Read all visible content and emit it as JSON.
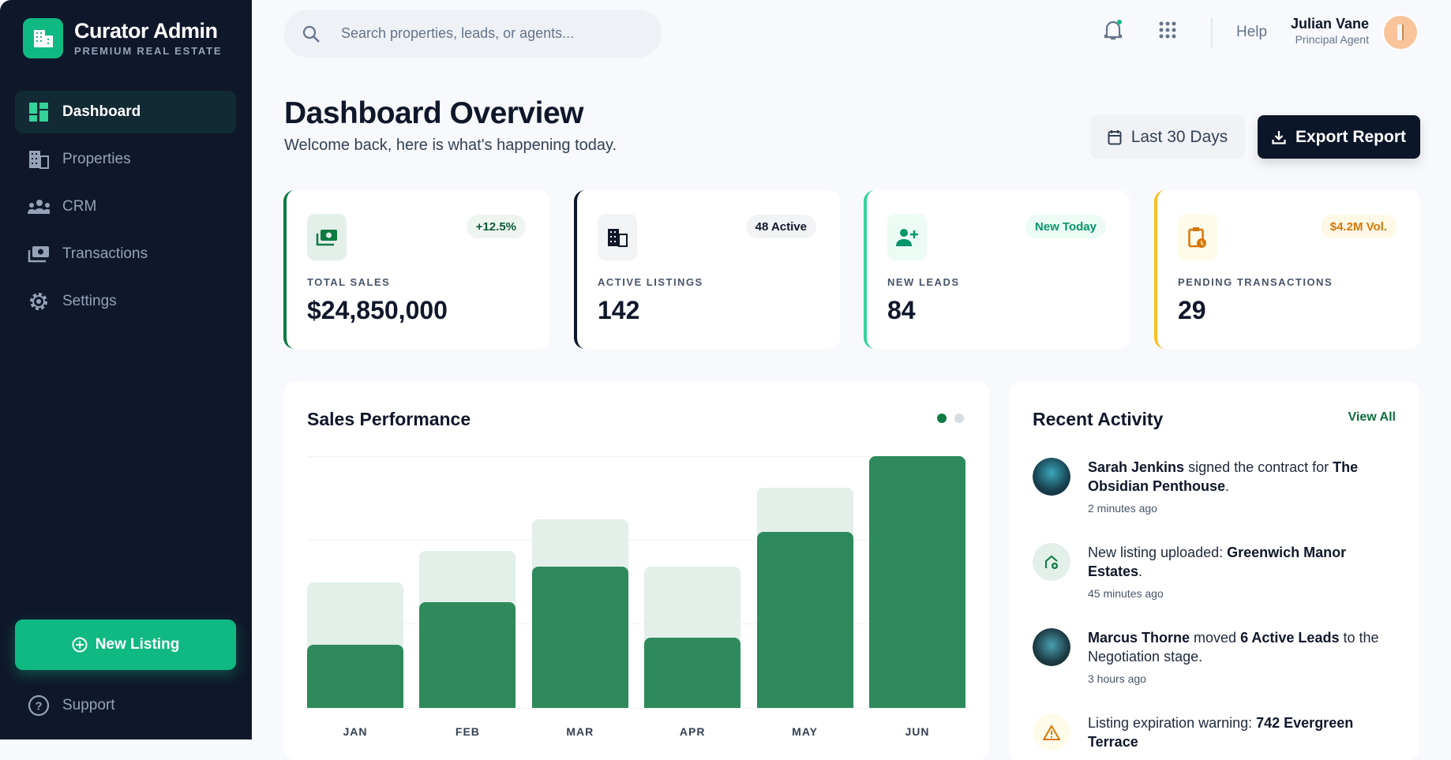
{
  "sidebar": {
    "brand": "Curator Admin",
    "brand_sub": "PREMIUM REAL ESTATE",
    "items": [
      {
        "label": "Dashboard",
        "icon": "dashboard-icon",
        "active": true
      },
      {
        "label": "Properties",
        "icon": "building-icon"
      },
      {
        "label": "CRM",
        "icon": "people-icon"
      },
      {
        "label": "Transactions",
        "icon": "payments-icon"
      },
      {
        "label": "Settings",
        "icon": "gear-icon"
      }
    ],
    "new_listing": "New Listing",
    "support": "Support"
  },
  "header": {
    "search_placeholder": "Search properties, leads, or agents...",
    "help": "Help",
    "user_name": "Julian Vane",
    "user_role": "Principal Agent"
  },
  "page": {
    "title": "Dashboard Overview",
    "subtitle": "Welcome back, here is what's happening today.",
    "range_button": "Last 30 Days",
    "export_button": "Export Report"
  },
  "stats": [
    {
      "label": "TOTAL SALES",
      "value": "$24,850,000",
      "badge": "+12.5%",
      "accent": "#0f7a43"
    },
    {
      "label": "ACTIVE LISTINGS",
      "value": "142",
      "badge": "48 Active",
      "accent": "#0f172a"
    },
    {
      "label": "NEW LEADS",
      "value": "84",
      "badge": "New Today",
      "accent": "#34d399"
    },
    {
      "label": "PENDING TRANSACTIONS",
      "value": "29",
      "badge": "$4.2M Vol.",
      "accent": "#fbbf24"
    }
  ],
  "chart_data": {
    "type": "bar",
    "title": "Sales Performance",
    "categories": [
      "JAN",
      "FEB",
      "MAR",
      "APR",
      "MAY",
      "JUN"
    ],
    "series": [
      {
        "values": [
          50,
          62.5,
          75,
          56,
          87.5,
          100
        ],
        "color": "#e3efe9"
      },
      {
        "values": [
          25,
          42,
          56,
          28,
          70,
          100
        ],
        "color": "#2e8a5c"
      }
    ],
    "ylim": [
      0,
      100
    ],
    "grid": true
  },
  "activity": {
    "title": "Recent Activity",
    "view_all": "View All",
    "items": [
      {
        "parts": [
          [
            "Sarah Jenkins",
            true
          ],
          [
            " signed the contract for ",
            false
          ],
          [
            "The Obsidian Penthouse",
            true
          ],
          [
            ".",
            false
          ]
        ],
        "time": "2 minutes ago"
      },
      {
        "parts": [
          [
            "New listing uploaded: ",
            false
          ],
          [
            "Greenwich Manor Estates",
            true
          ],
          [
            ".",
            false
          ]
        ],
        "time": "45 minutes ago"
      },
      {
        "parts": [
          [
            "Marcus Thorne",
            true
          ],
          [
            " moved ",
            false
          ],
          [
            "6 Active Leads",
            true
          ],
          [
            " to the Negotiation stage.",
            false
          ]
        ],
        "time": "3 hours ago"
      },
      {
        "parts": [
          [
            "Listing expiration warning: ",
            false
          ],
          [
            "742 Evergreen Terrace",
            true
          ]
        ],
        "time": ""
      }
    ]
  }
}
